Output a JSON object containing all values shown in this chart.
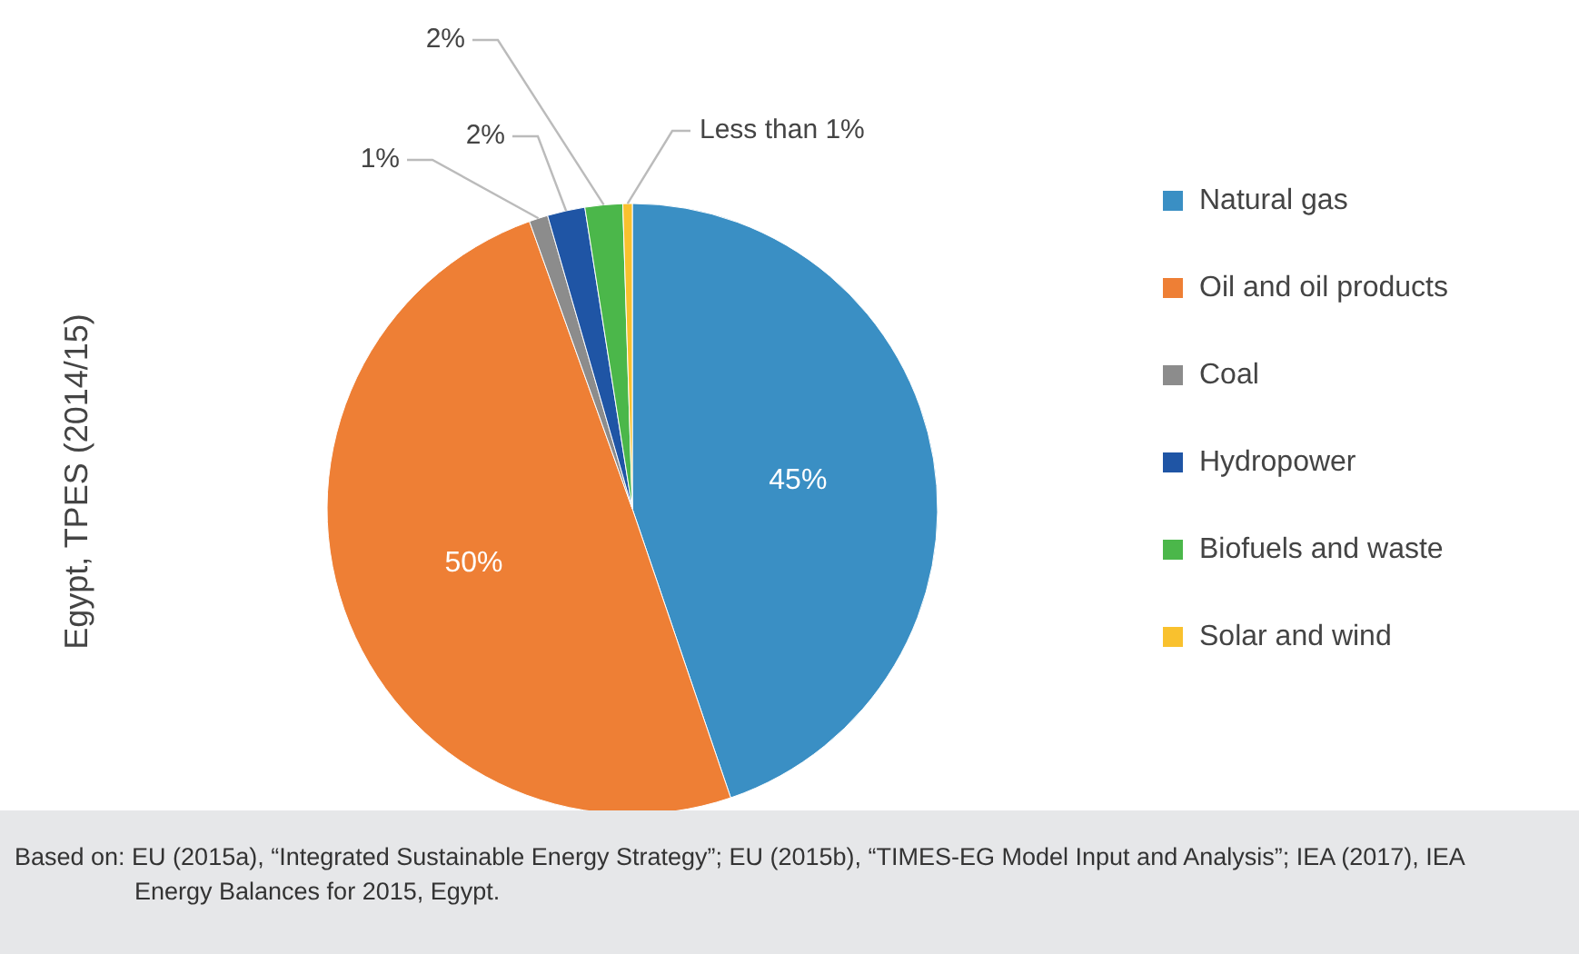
{
  "chart_data": {
    "type": "pie",
    "ylabel": "Egypt, TPES (2014/15)",
    "categories": [
      "Natural gas",
      "Oil and oil products",
      "Coal",
      "Hydropower",
      "Biofuels and waste",
      "Solar and wind"
    ],
    "values": [
      45,
      50,
      1,
      2,
      2,
      0.5
    ],
    "value_labels": [
      "45%",
      "50%",
      "1%",
      "2%",
      "2%",
      "Less than 1%"
    ],
    "colors": [
      "#3a8fc4",
      "#ee7f35",
      "#8c8c8c",
      "#1f55a5",
      "#4bb74a",
      "#f9c12e"
    ],
    "legend": "right",
    "annotations": [
      "Based on: EU (2015a), “Integrated Sustainable Energy Strategy”; EU (2015b), “TIMES-EG Model Input and Analysis”; IEA (2017), IEA Energy Balances for 2015, Egypt."
    ]
  }
}
